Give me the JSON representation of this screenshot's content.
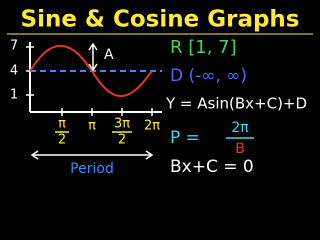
{
  "header": {
    "title": "Sine & Cosine Graphs"
  },
  "graph": {
    "y_labels": [
      "7",
      "4",
      "1"
    ],
    "x_labels": [
      {
        "num": "π",
        "den": "2"
      },
      {
        "num": "π"
      },
      {
        "num": "3π",
        "den": "2"
      },
      {
        "num": "2π"
      }
    ],
    "amplitude_label": "A",
    "period_label": "Period"
  },
  "notes": {
    "range": "R [1, 7]",
    "domain": "D (-∞, ∞)",
    "equation": "Y = Asin(Bx+C)+D",
    "period": {
      "lhs": "P =",
      "num": "2π",
      "den": "B"
    },
    "phase": "Bx+C = 0"
  }
}
